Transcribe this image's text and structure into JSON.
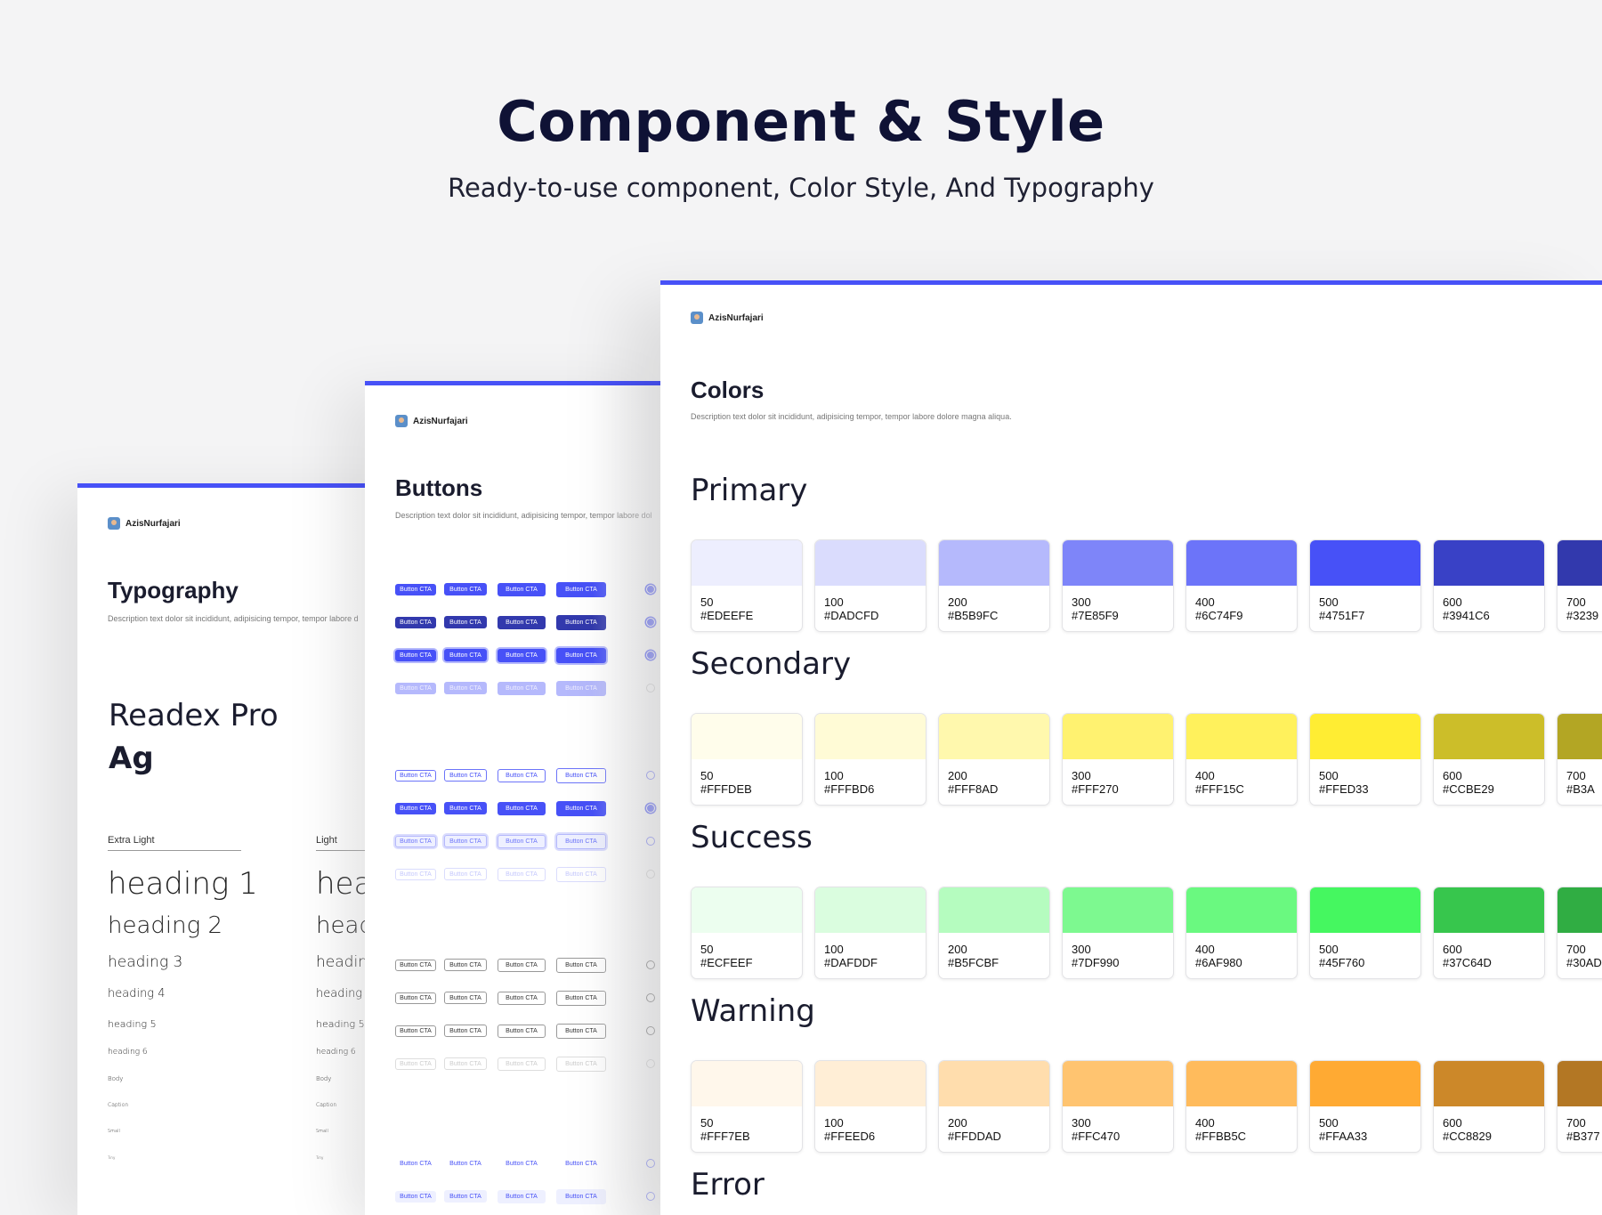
{
  "hero": {
    "title": "Component & Style",
    "subtitle": "Ready-to-use component, Color Style, And Typography"
  },
  "brand_name": "AzisNurfajari",
  "typography_card": {
    "title": "Typography",
    "description": "Description text dolor sit incididunt, adipisicing tempor, tempor labore d",
    "font_name": "Readex Pro",
    "sample": "Ag",
    "columns": [
      {
        "weight": "Extra Light",
        "styles": [
          "heading 1",
          "heading 2",
          "heading 3",
          "heading 4",
          "heading 5",
          "heading 6",
          "Body",
          "Caption",
          "Small",
          "Tiny"
        ]
      },
      {
        "weight": "Light",
        "styles": [
          "hea",
          "head",
          "headin",
          "heading 4",
          "heading 5",
          "heading 6",
          "Body",
          "Caption",
          "Small",
          "Tiny"
        ]
      }
    ]
  },
  "buttons_card": {
    "title": "Buttons",
    "description": "Description text dolor sit incididunt, adipisicing tempor, tempor labore dol",
    "button_label": "Button CTA"
  },
  "colors_card": {
    "title": "Colors",
    "description": "Description text dolor sit incididunt, adipisicing tempor, tempor labore dolore magna aliqua.",
    "groups": [
      {
        "name": "Primary",
        "swatches": [
          {
            "step": "50",
            "hex": "#EDEEFE"
          },
          {
            "step": "100",
            "hex": "#DADCFD"
          },
          {
            "step": "200",
            "hex": "#B5B9FC"
          },
          {
            "step": "300",
            "hex": "#7E85F9"
          },
          {
            "step": "400",
            "hex": "#6C74F9"
          },
          {
            "step": "500",
            "hex": "#4751F7"
          },
          {
            "step": "600",
            "hex": "#3941C6"
          },
          {
            "step": "700",
            "hex": "#3239"
          }
        ]
      },
      {
        "name": "Secondary",
        "swatches": [
          {
            "step": "50",
            "hex": "#FFFDEB"
          },
          {
            "step": "100",
            "hex": "#FFFBD6"
          },
          {
            "step": "200",
            "hex": "#FFF8AD"
          },
          {
            "step": "300",
            "hex": "#FFF270"
          },
          {
            "step": "400",
            "hex": "#FFF15C"
          },
          {
            "step": "500",
            "hex": "#FFED33"
          },
          {
            "step": "600",
            "hex": "#CCBE29"
          },
          {
            "step": "700",
            "hex": "#B3A"
          }
        ]
      },
      {
        "name": "Success",
        "swatches": [
          {
            "step": "50",
            "hex": "#ECFEEF"
          },
          {
            "step": "100",
            "hex": "#DAFDDF"
          },
          {
            "step": "200",
            "hex": "#B5FCBF"
          },
          {
            "step": "300",
            "hex": "#7DF990"
          },
          {
            "step": "400",
            "hex": "#6AF980"
          },
          {
            "step": "500",
            "hex": "#45F760"
          },
          {
            "step": "600",
            "hex": "#37C64D"
          },
          {
            "step": "700",
            "hex": "#30AD"
          }
        ]
      },
      {
        "name": "Warning",
        "swatches": [
          {
            "step": "50",
            "hex": "#FFF7EB"
          },
          {
            "step": "100",
            "hex": "#FFEED6"
          },
          {
            "step": "200",
            "hex": "#FFDDAD"
          },
          {
            "step": "300",
            "hex": "#FFC470"
          },
          {
            "step": "400",
            "hex": "#FFBB5C"
          },
          {
            "step": "500",
            "hex": "#FFAA33"
          },
          {
            "step": "600",
            "hex": "#CC8829"
          },
          {
            "step": "700",
            "hex": "#B377"
          }
        ]
      },
      {
        "name": "Error",
        "swatches": []
      }
    ]
  },
  "swatch_fills": {
    "Primary": [
      "#EDEEFE",
      "#DADCFD",
      "#B5B9FC",
      "#7E85F9",
      "#6C74F9",
      "#4751F7",
      "#3941C6",
      "#3239AD"
    ],
    "Secondary": [
      "#FFFDEB",
      "#FFFBD6",
      "#FFF8AD",
      "#FFF270",
      "#FFF15C",
      "#FFED33",
      "#CCBE29",
      "#B3A624"
    ],
    "Success": [
      "#ECFEEF",
      "#DAFDDF",
      "#B5FCBF",
      "#7DF990",
      "#6AF980",
      "#45F760",
      "#37C64D",
      "#30AD43"
    ],
    "Warning": [
      "#FFF7EB",
      "#FFEED6",
      "#FFDDAD",
      "#FFC470",
      "#FFBB5C",
      "#FFAA33",
      "#CC8829",
      "#B37724"
    ]
  },
  "accent_color": "#4751F7"
}
